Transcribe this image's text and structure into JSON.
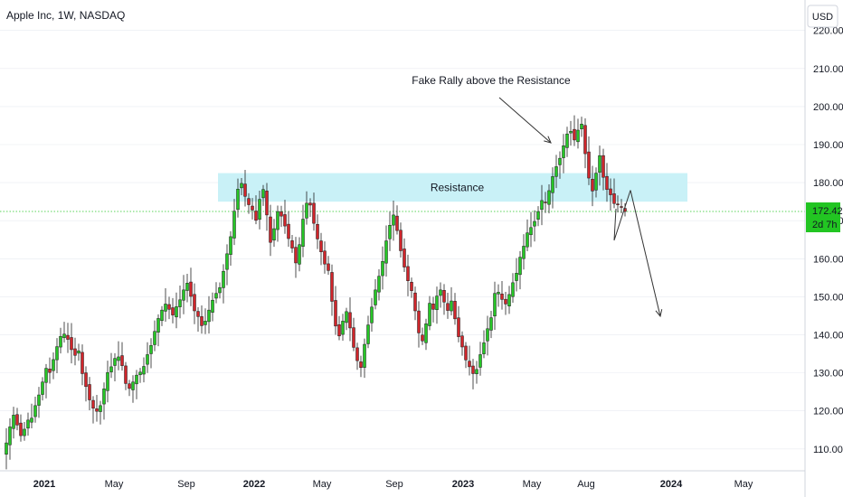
{
  "header": {
    "title": "Apple Inc, 1W, NASDAQ"
  },
  "price_axis": {
    "currency": "USD"
  },
  "last_price": {
    "value": "172.42",
    "countdown": "2d 7h",
    "color": "#22c522"
  },
  "colors": {
    "up": "#26c626",
    "down": "#d0252b",
    "resistance": "#c9f1f7",
    "grid": "#e8ebf0",
    "price_line": "#26c626"
  },
  "annotations": {
    "resistance_label": "Resistance",
    "rally_label": "Fake Rally above the Resistance"
  },
  "chart_data": {
    "type": "candlestick",
    "title": "Apple Inc, 1W, NASDAQ",
    "ylabel": "USD",
    "ylim": [
      104.5,
      228
    ],
    "y_ticks": [
      110,
      120,
      130,
      140,
      150,
      160,
      170,
      180,
      190,
      200,
      210,
      220
    ],
    "y_tick_labels": [
      "110.00",
      "120.00",
      "130.00",
      "140.00",
      "150.00",
      "160.00",
      "170.00",
      "180.00",
      "190.00",
      "200.00",
      "210.00",
      "220.00"
    ],
    "x_tick_labels": [
      "2021",
      "May",
      "Sep",
      "2022",
      "May",
      "Sep",
      "2023",
      "May",
      "Aug",
      "2024",
      "May"
    ],
    "grid": false,
    "resistance_zone": [
      175,
      182.5
    ],
    "last_price": 172.42,
    "projection_path": [
      [
        0,
        172.42
      ],
      [
        4,
        178
      ],
      [
        20,
        146
      ]
    ],
    "closes": [
      111.6,
      115.8,
      118.9,
      116.3,
      113.5,
      115.2,
      117.6,
      118.1,
      121.4,
      124.2,
      127.6,
      131.2,
      130.1,
      133.5,
      136.9,
      139.6,
      140.2,
      138.8,
      136.1,
      134.6,
      135.8,
      129.8,
      126.4,
      122.9,
      120.7,
      119.9,
      121.4,
      125.8,
      130.1,
      131.6,
      133.8,
      134.2,
      131.9,
      127.2,
      125.9,
      127.6,
      129.4,
      130.2,
      131.7,
      134.8,
      137.2,
      140.9,
      144.3,
      146.5,
      148.1,
      146.7,
      145.2,
      147.4,
      149.2,
      151.8,
      153.6,
      150.1,
      146.3,
      144.8,
      142.4,
      143.6,
      146.5,
      149.1,
      150.9,
      152.4,
      156.7,
      161.3,
      165.8,
      172.5,
      178.3,
      179.8,
      176.4,
      174.2,
      172.8,
      170.1,
      175.6,
      178.2,
      171.5,
      164.3,
      167.9,
      172.4,
      171.2,
      168.6,
      165.3,
      162.8,
      158.9,
      163.7,
      170.4,
      174.6,
      174.1,
      169.3,
      165.2,
      161.8,
      158.6,
      156.9,
      148.8,
      142.3,
      139.7,
      143.6,
      146.1,
      141.8,
      136.7,
      133.2,
      131.4,
      137.5,
      142.6,
      147.3,
      151.8,
      155.4,
      159.3,
      164.7,
      168.8,
      171.5,
      167.4,
      162.1,
      157.8,
      154.2,
      151.6,
      146.3,
      140.5,
      138.4,
      142.9,
      148.3,
      146.7,
      150.2,
      151.8,
      148.6,
      146.4,
      148.9,
      144.2,
      139.5,
      136.8,
      133.4,
      131.6,
      129.8,
      130.9,
      134.8,
      137.9,
      141.6,
      144.5,
      150.9,
      151.2,
      149.3,
      148.1,
      150.6,
      153.7,
      156.2,
      160.4,
      163.3,
      166.8,
      168.2,
      169.8,
      172.4,
      175.3,
      174.8,
      177.9,
      181.6,
      184.2,
      186.4,
      189.7,
      192.8,
      193.5,
      191.2,
      193.8,
      195.4,
      187.6,
      181.2,
      177.8,
      182.5,
      187.1,
      181.4,
      178.2,
      176.8,
      174.5,
      174.2,
      173.6,
      172.42
    ]
  }
}
